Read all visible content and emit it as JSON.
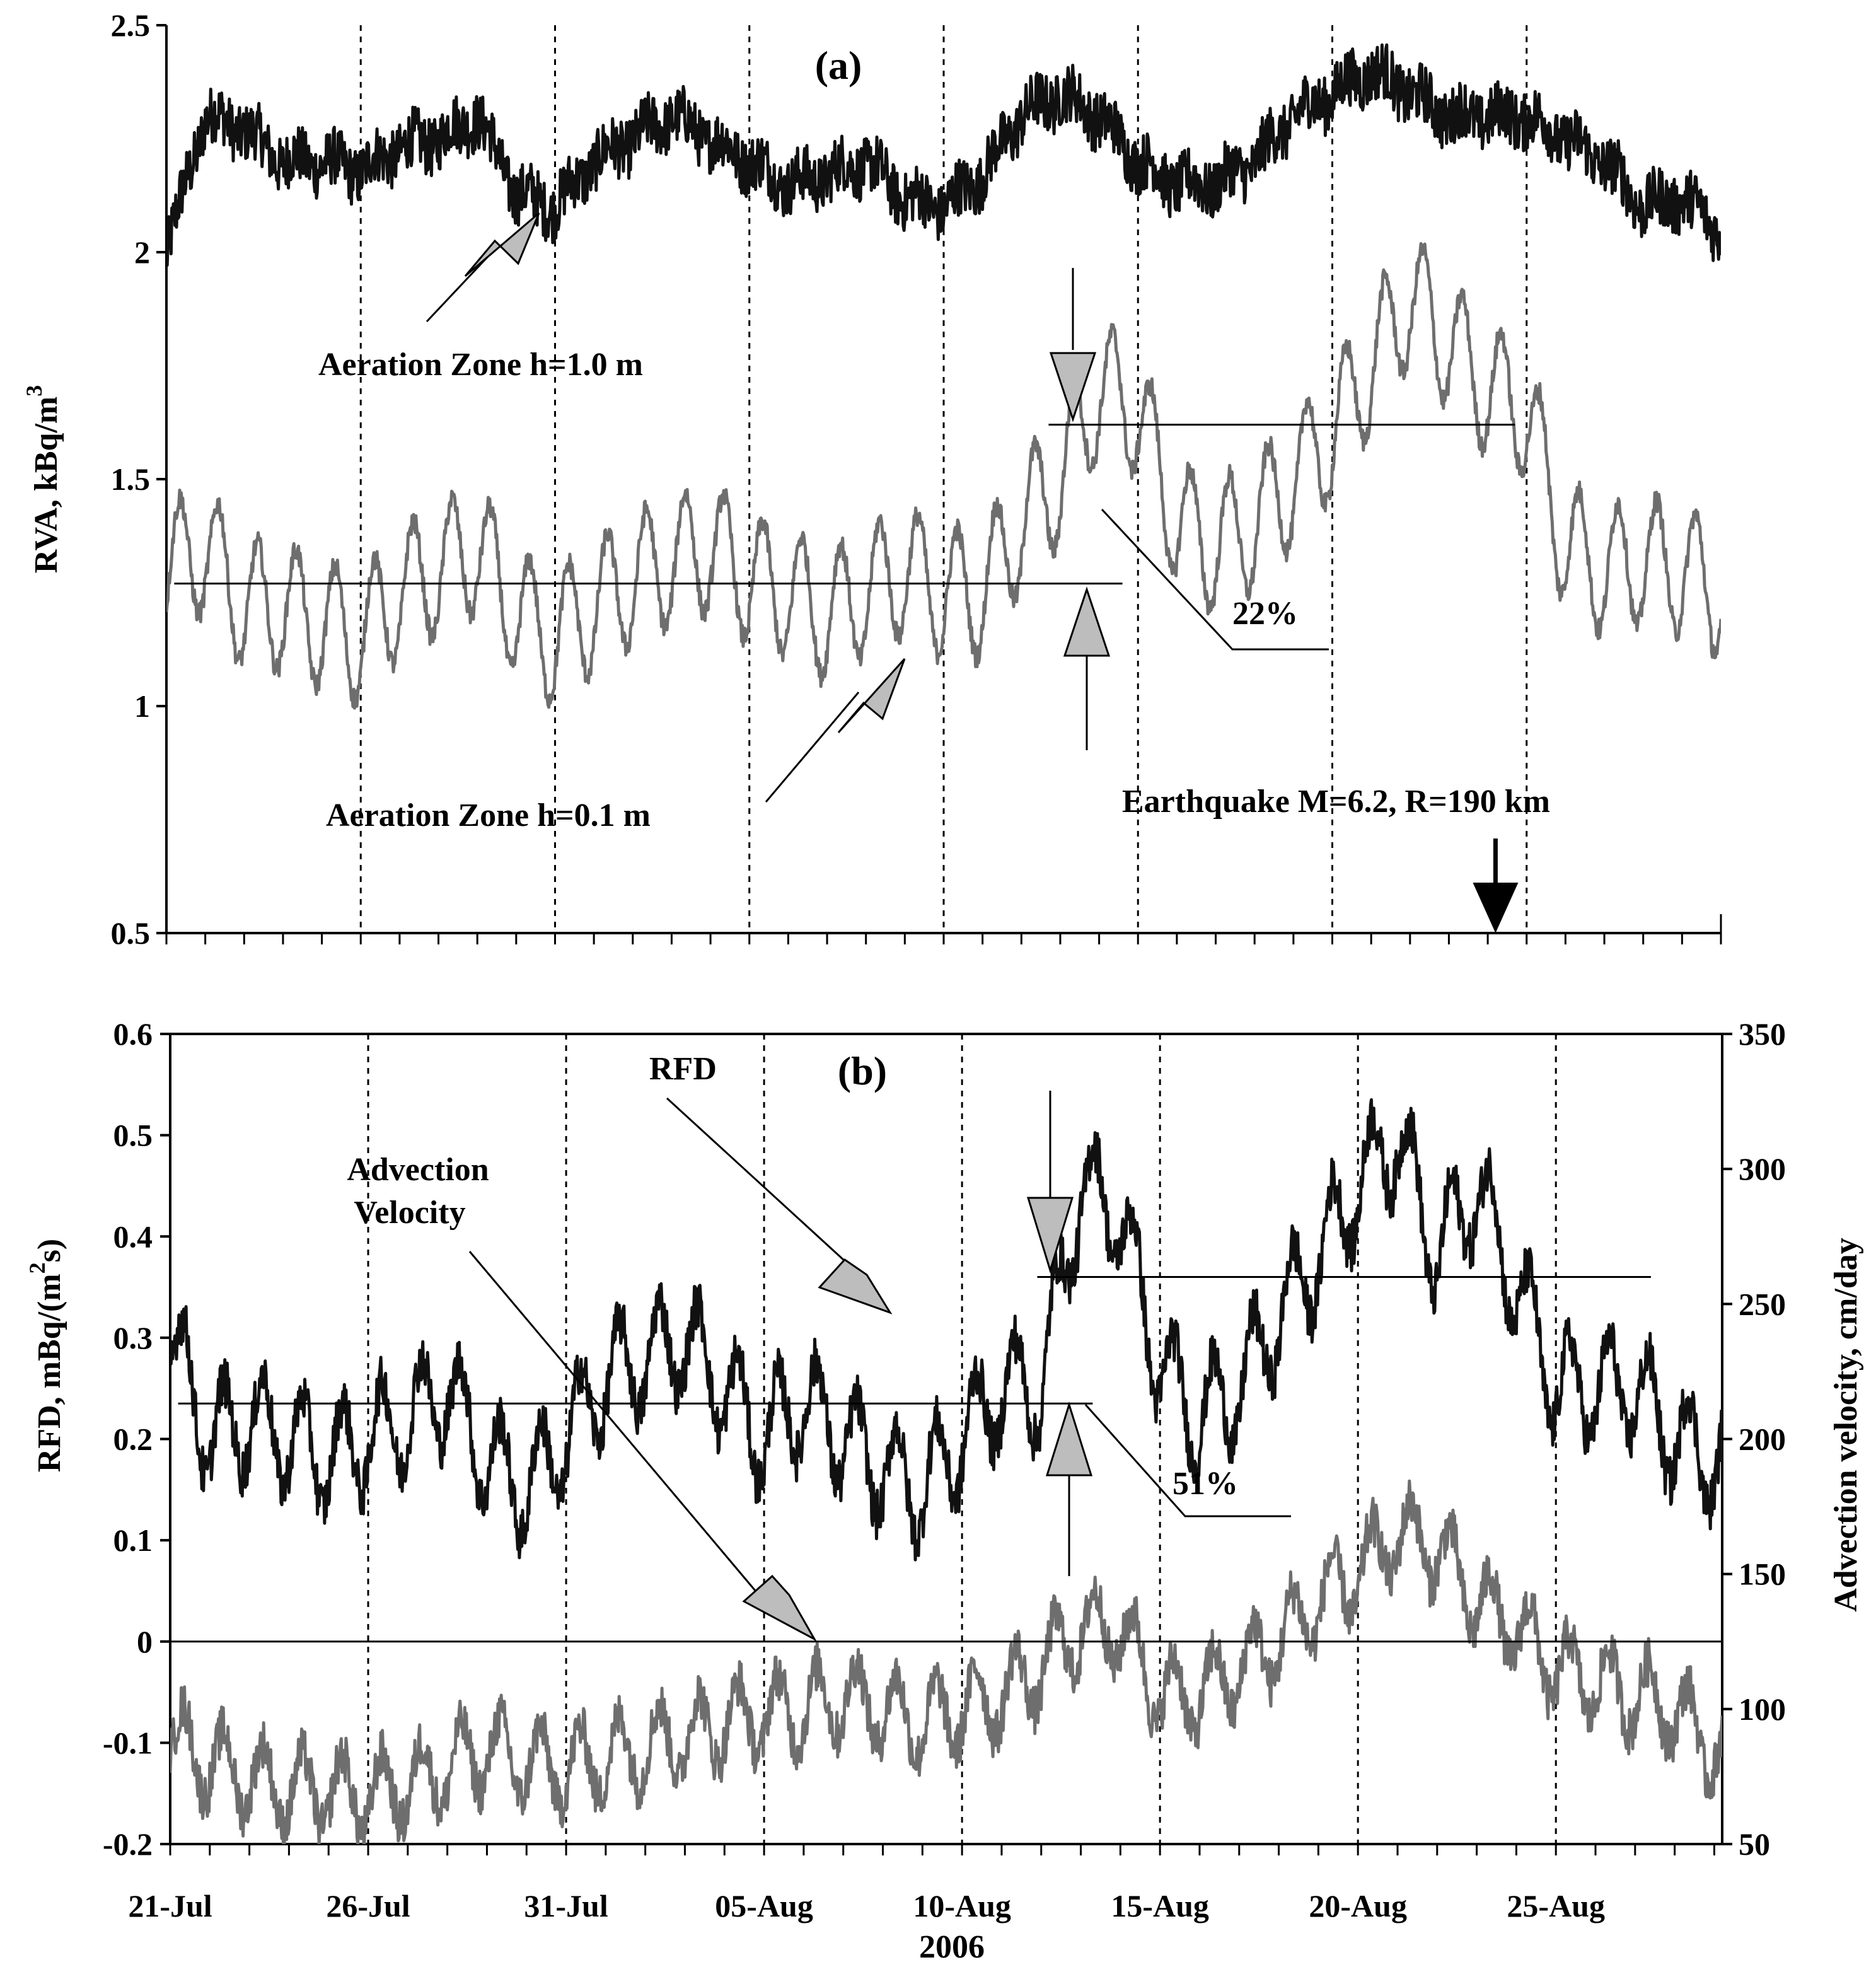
{
  "chart_data": [
    {
      "type": "line",
      "panel_label": "(a)",
      "ylabel": "RVA, kBq/m",
      "ylabel_sup": "3",
      "ylim": [
        0.5,
        2.5
      ],
      "yticks": [
        "0.5",
        "1",
        "1.5",
        "2",
        "2.5"
      ],
      "x_day_range": [
        0,
        40
      ],
      "series": [
        {
          "name": "Aeration Zone h=1.0 m",
          "color": "#111111",
          "x": [
            0,
            1,
            2,
            3,
            4,
            5,
            6,
            7,
            8,
            9,
            10,
            11,
            12,
            13,
            14,
            15,
            16,
            17,
            18,
            19,
            20,
            21,
            22,
            23,
            24,
            25,
            26,
            27,
            28,
            29,
            30,
            31,
            32,
            33,
            34,
            35,
            36,
            37,
            38,
            39,
            40
          ],
          "y": [
            2.0,
            2.3,
            2.27,
            2.2,
            2.2,
            2.18,
            2.23,
            2.25,
            2.3,
            2.13,
            2.1,
            2.2,
            2.25,
            2.3,
            2.25,
            2.2,
            2.15,
            2.17,
            2.2,
            2.12,
            2.1,
            2.17,
            2.3,
            2.35,
            2.3,
            2.2,
            2.15,
            2.15,
            2.2,
            2.3,
            2.35,
            2.4,
            2.35,
            2.3,
            2.3,
            2.3,
            2.25,
            2.2,
            2.1,
            2.12,
            2.05
          ]
        },
        {
          "name": "Aeration Zone h=0.1 m",
          "color": "#6e6e6e",
          "x": [
            0,
            1,
            2,
            3,
            4,
            5,
            6,
            7,
            8,
            9,
            10,
            11,
            12,
            13,
            14,
            15,
            16,
            17,
            18,
            19,
            20,
            21,
            22,
            23,
            24,
            25,
            26,
            27,
            28,
            29,
            30,
            31,
            32,
            33,
            34,
            35,
            36,
            37,
            38,
            39,
            40
          ],
          "y": [
            1.3,
            1.35,
            1.22,
            1.22,
            1.18,
            1.15,
            1.25,
            1.3,
            1.35,
            1.2,
            1.15,
            1.22,
            1.28,
            1.32,
            1.35,
            1.28,
            1.25,
            1.2,
            1.25,
            1.3,
            1.25,
            1.25,
            1.4,
            1.5,
            1.7,
            1.65,
            1.4,
            1.35,
            1.4,
            1.5,
            1.6,
            1.75,
            1.9,
            1.8,
            1.7,
            1.65,
            1.35,
            1.3,
            1.32,
            1.3,
            1.25
          ]
        }
      ],
      "reference_lines": [
        {
          "y": 1.27,
          "x_start": 0.2,
          "x_end": 24.6
        },
        {
          "y": 1.62,
          "x_start": 22.7,
          "x_end": 34.7
        }
      ],
      "annotations": {
        "label_10": "Aeration Zone h=1.0 m",
        "label_01": "Aeration Zone h=0.1 m",
        "percent": "22%",
        "earthquake": "Earthquake M=6.2, R=190 km"
      },
      "earthquake_day": 34.2
    },
    {
      "type": "line",
      "panel_label": "(b)",
      "ylabel": "RFD, mBq/(m",
      "ylabel_sup": "2",
      "ylabel_tail": "s)",
      "y2label": "Advection velocity, cm/day",
      "xlabel": "2006",
      "ylim": [
        -0.2,
        0.6
      ],
      "y2lim": [
        50,
        350
      ],
      "yticks": [
        "-0.2",
        "-0.1",
        "0",
        "0.1",
        "0.2",
        "0.3",
        "0.4",
        "0.5",
        "0.6"
      ],
      "y2ticks": [
        "50",
        "100",
        "150",
        "200",
        "250",
        "300",
        "350"
      ],
      "categories": [
        "21-Jul",
        "26-Jul",
        "31-Jul",
        "05-Aug",
        "10-Aug",
        "15-Aug",
        "20-Aug",
        "25-Aug"
      ],
      "x_day_range": [
        0,
        39.2
      ],
      "series": [
        {
          "name": "RFD",
          "color": "#111111",
          "axis": "left",
          "x": [
            0,
            1,
            2,
            3,
            4,
            5,
            6,
            7,
            8,
            9,
            10,
            11,
            12,
            13,
            14,
            15,
            16,
            17,
            18,
            19,
            20,
            21,
            22,
            23,
            24,
            25,
            26,
            27,
            28,
            29,
            30,
            31,
            32,
            33,
            34,
            35,
            36,
            37,
            38,
            39
          ],
          "y": [
            0.3,
            0.2,
            0.22,
            0.2,
            0.18,
            0.2,
            0.22,
            0.25,
            0.18,
            0.15,
            0.2,
            0.26,
            0.28,
            0.3,
            0.25,
            0.2,
            0.24,
            0.2,
            0.17,
            0.15,
            0.2,
            0.25,
            0.25,
            0.45,
            0.42,
            0.27,
            0.22,
            0.25,
            0.32,
            0.38,
            0.45,
            0.5,
            0.38,
            0.45,
            0.35,
            0.25,
            0.25,
            0.25,
            0.2,
            0.18
          ]
        },
        {
          "name": "Advection Velocity",
          "color": "#6e6e6e",
          "axis": "right",
          "x": [
            0,
            1,
            2,
            3,
            4,
            5,
            6,
            7,
            8,
            9,
            10,
            11,
            12,
            13,
            14,
            15,
            16,
            17,
            18,
            19,
            20,
            21,
            22,
            23,
            24,
            25,
            26,
            27,
            28,
            29,
            30,
            31,
            32,
            33,
            34,
            35,
            36,
            37,
            38,
            39
          ],
          "y": [
            90,
            80,
            75,
            70,
            70,
            68,
            72,
            78,
            85,
            80,
            78,
            82,
            86,
            90,
            95,
            98,
            100,
            105,
            100,
            95,
            100,
            105,
            115,
            130,
            130,
            105,
            105,
            115,
            125,
            140,
            150,
            165,
            160,
            140,
            130,
            115,
            110,
            105,
            100,
            85
          ]
        }
      ],
      "reference_lines": [
        {
          "y": 0.235,
          "x_start": 0.2,
          "x_end": 23.3
        },
        {
          "y": 0.36,
          "x_start": 21.9,
          "x_end": 37.4
        },
        {
          "y": 0.0,
          "x_start": 0,
          "x_end": 39.2
        }
      ],
      "annotations": {
        "rfd": "RFD",
        "advection_line1": "Advection",
        "advection_line2": "Velocity",
        "percent": "51%"
      }
    }
  ]
}
